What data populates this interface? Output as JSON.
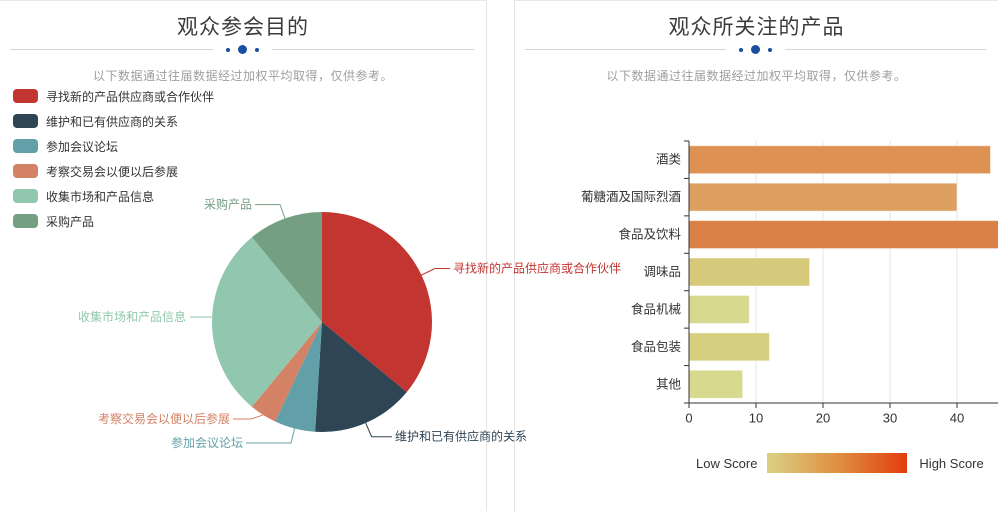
{
  "left_panel": {
    "title": "观众参会目的",
    "subtitle": "以下数据通过往届数据经过加权平均取得，仅供参考。"
  },
  "right_panel": {
    "title": "观众所关注的产品",
    "subtitle": "以下数据通过往届数据经过加权平均取得，仅供参考。",
    "visual_map": {
      "low_label": "Low Score",
      "high_label": "High Score",
      "gradient": [
        "#dbd184",
        "#e0893b",
        "#e23c0e"
      ]
    }
  },
  "theme": {
    "divider_dot_color": "#1a4e9e",
    "divider_line_color": "#d6d6d6",
    "axis_color": "#333333",
    "grid_color": "#e4e4e4",
    "text_color": "#333333",
    "subtitle_color": "#9e9e9e"
  },
  "chart_data": [
    {
      "type": "pie",
      "title": "观众参会目的",
      "legend_position": "top-left",
      "series": [
        {
          "name": "寻找新的产品供应商或合作伙伴",
          "value": 36,
          "color": "#c23531"
        },
        {
          "name": "维护和已有供应商的关系",
          "value": 15,
          "color": "#2f4554"
        },
        {
          "name": "参加会议论坛",
          "value": 6,
          "color": "#61a0a8"
        },
        {
          "name": "考察交易会以便以后参展",
          "value": 4,
          "color": "#d48265"
        },
        {
          "name": "收集市场和产品信息",
          "value": 28,
          "color": "#91c7ae"
        },
        {
          "name": "采购产品",
          "value": 11,
          "color": "#749f83"
        }
      ]
    },
    {
      "type": "bar",
      "title": "观众所关注的产品",
      "orientation": "horizontal",
      "categories": [
        "酒类",
        "葡糖酒及国际烈酒",
        "食品及饮料",
        "调味品",
        "食品机械",
        "食品包装",
        "其他"
      ],
      "values": [
        45,
        40,
        48,
        18,
        9,
        12,
        8
      ],
      "bar_colors": [
        "#dd9254",
        "#dda061",
        "#da8147",
        "#d6c97b",
        "#d6d88d",
        "#d5cf80",
        "#d6d98e"
      ],
      "xticks": [
        0,
        10,
        20,
        30,
        40
      ],
      "xlim": [
        0,
        47
      ],
      "grid": true,
      "ylabel": "",
      "xlabel": ""
    }
  ]
}
